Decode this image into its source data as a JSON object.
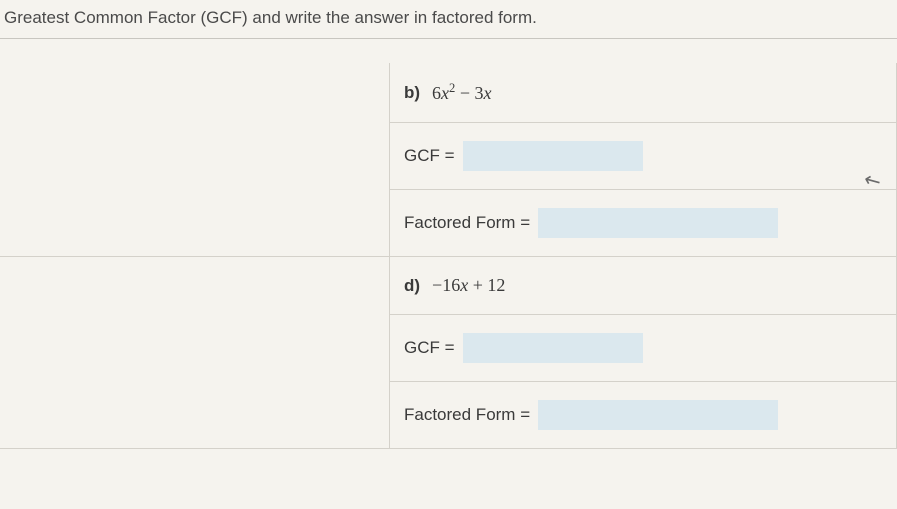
{
  "header": {
    "text": "Greatest Common Factor (GCF) and write the answer in factored form."
  },
  "problems": [
    {
      "label": "b)",
      "expression_html": "6<span class='math'>x</span><sup>2</sup> − 3<span class='math'>x</span>",
      "gcf_label": "GCF =",
      "factored_label": "Factored Form ="
    },
    {
      "label": "d)",
      "expression_html": "−16<span class='math'>x</span> + 12",
      "gcf_label": "GCF =",
      "factored_label": "Factored Form ="
    }
  ],
  "style": {
    "background": "#f5f3ee",
    "border_color": "#d4d1ca",
    "input_bg": "#dbe8ee",
    "text_color": "#3a3a3a",
    "font_size_body": 17,
    "font_size_math": 18
  }
}
